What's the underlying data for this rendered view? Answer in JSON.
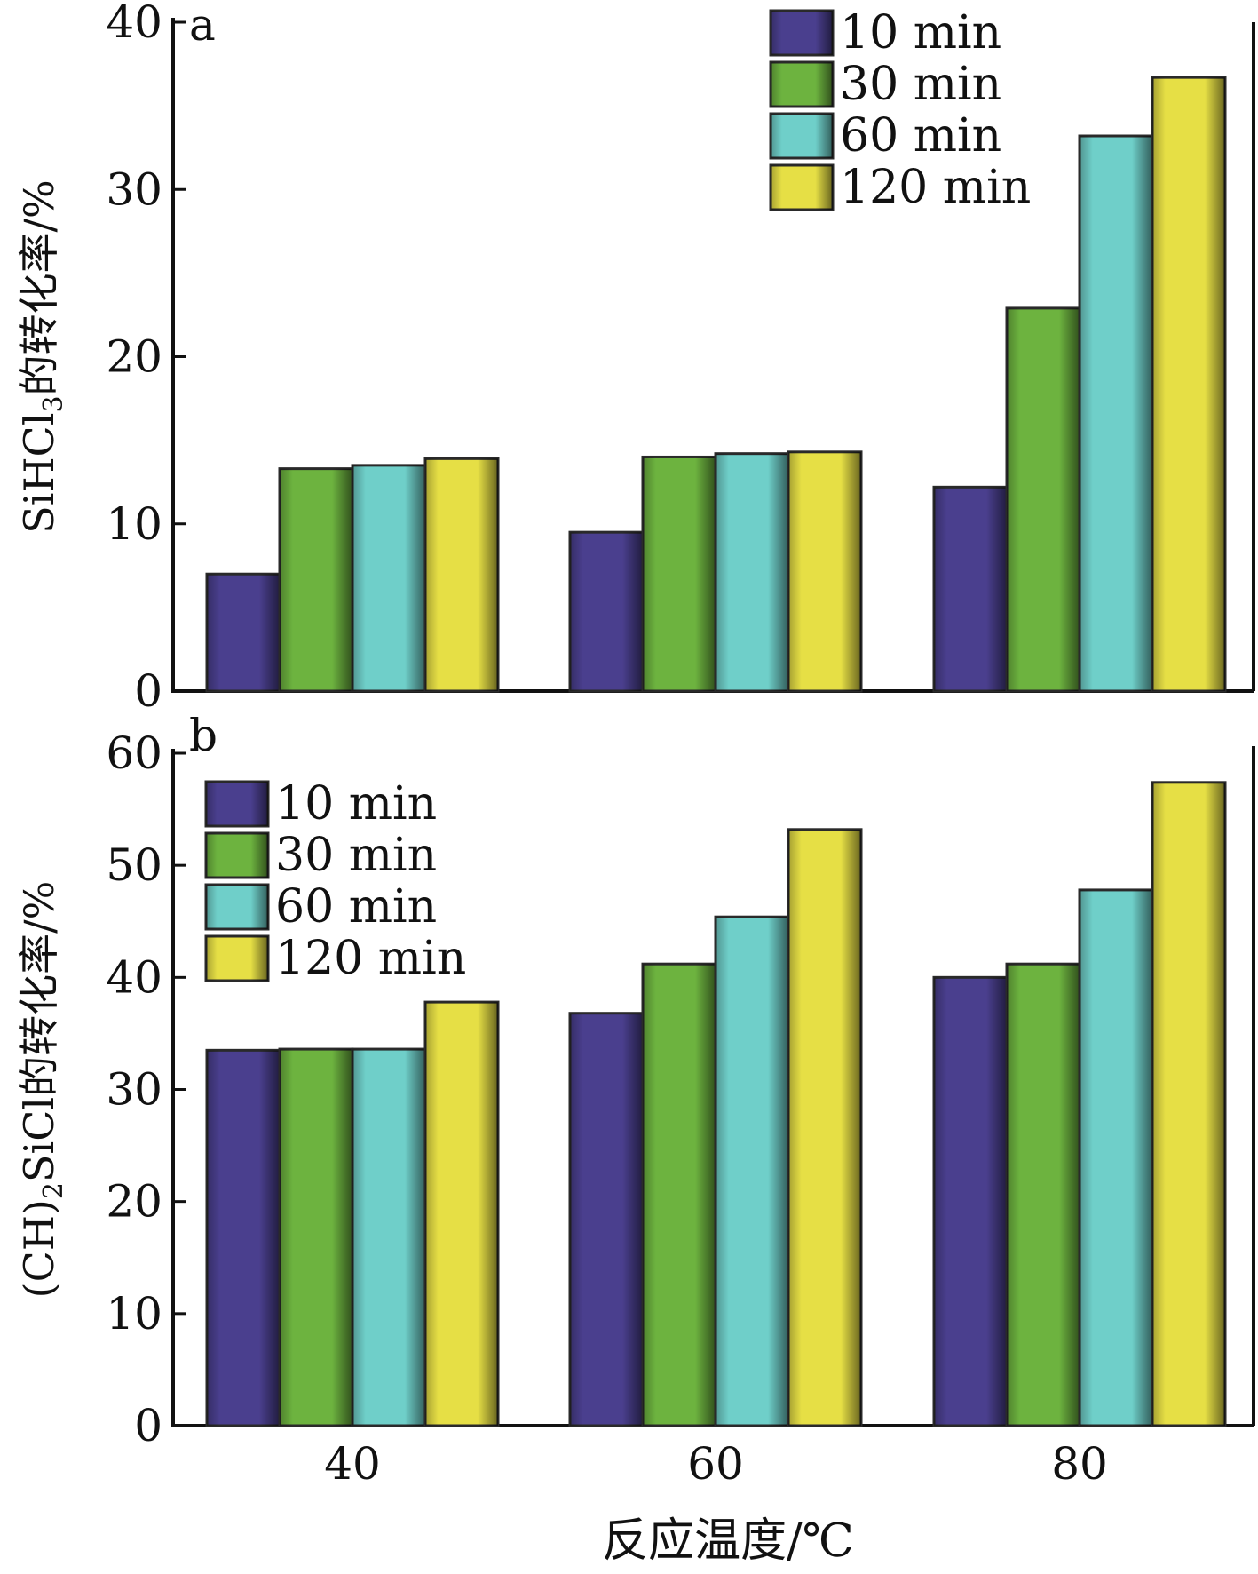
{
  "chart_data": {
    "type": "bar",
    "categories": [
      "40",
      "60",
      "80"
    ],
    "xlabel": "反应温度/℃",
    "series_names": [
      "10 min",
      "30 min",
      "60 min",
      "120 min"
    ],
    "colors": [
      "#4a3f8e",
      "#6db33f",
      "#6fcfc9",
      "#e6df45"
    ],
    "panels": [
      {
        "letter": "a",
        "ylabel": "SiHCl3的转化率/%",
        "ylabel_main": "SiHCl",
        "ylabel_sub": "3",
        "ylabel_rest": "的转化率/%",
        "ylim": [
          0,
          40
        ],
        "yticks": [
          0,
          10,
          20,
          30,
          40
        ],
        "legend_position": "top-right",
        "series": [
          {
            "name": "10 min",
            "values": [
              7.0,
              9.5,
              12.2
            ]
          },
          {
            "name": "30 min",
            "values": [
              13.3,
              14.0,
              22.9
            ]
          },
          {
            "name": "60 min",
            "values": [
              13.5,
              14.2,
              33.2
            ]
          },
          {
            "name": "120 min",
            "values": [
              13.9,
              14.3,
              36.7
            ]
          }
        ]
      },
      {
        "letter": "b",
        "ylabel": "(CH)2SiCl的转化率/%",
        "ylabel_main": "(CH)",
        "ylabel_sub": "2",
        "ylabel_rest": "SiCl的转化率/%",
        "ylim": [
          0,
          60
        ],
        "yticks": [
          0,
          10,
          20,
          30,
          40,
          50,
          60
        ],
        "legend_position": "top-left",
        "series": [
          {
            "name": "10 min",
            "values": [
              33.5,
              36.8,
              40.0
            ]
          },
          {
            "name": "30 min",
            "values": [
              33.6,
              41.2,
              41.2
            ]
          },
          {
            "name": "60 min",
            "values": [
              33.6,
              45.4,
              47.8
            ]
          },
          {
            "name": "120 min",
            "values": [
              37.8,
              53.2,
              57.4
            ]
          }
        ]
      }
    ]
  }
}
